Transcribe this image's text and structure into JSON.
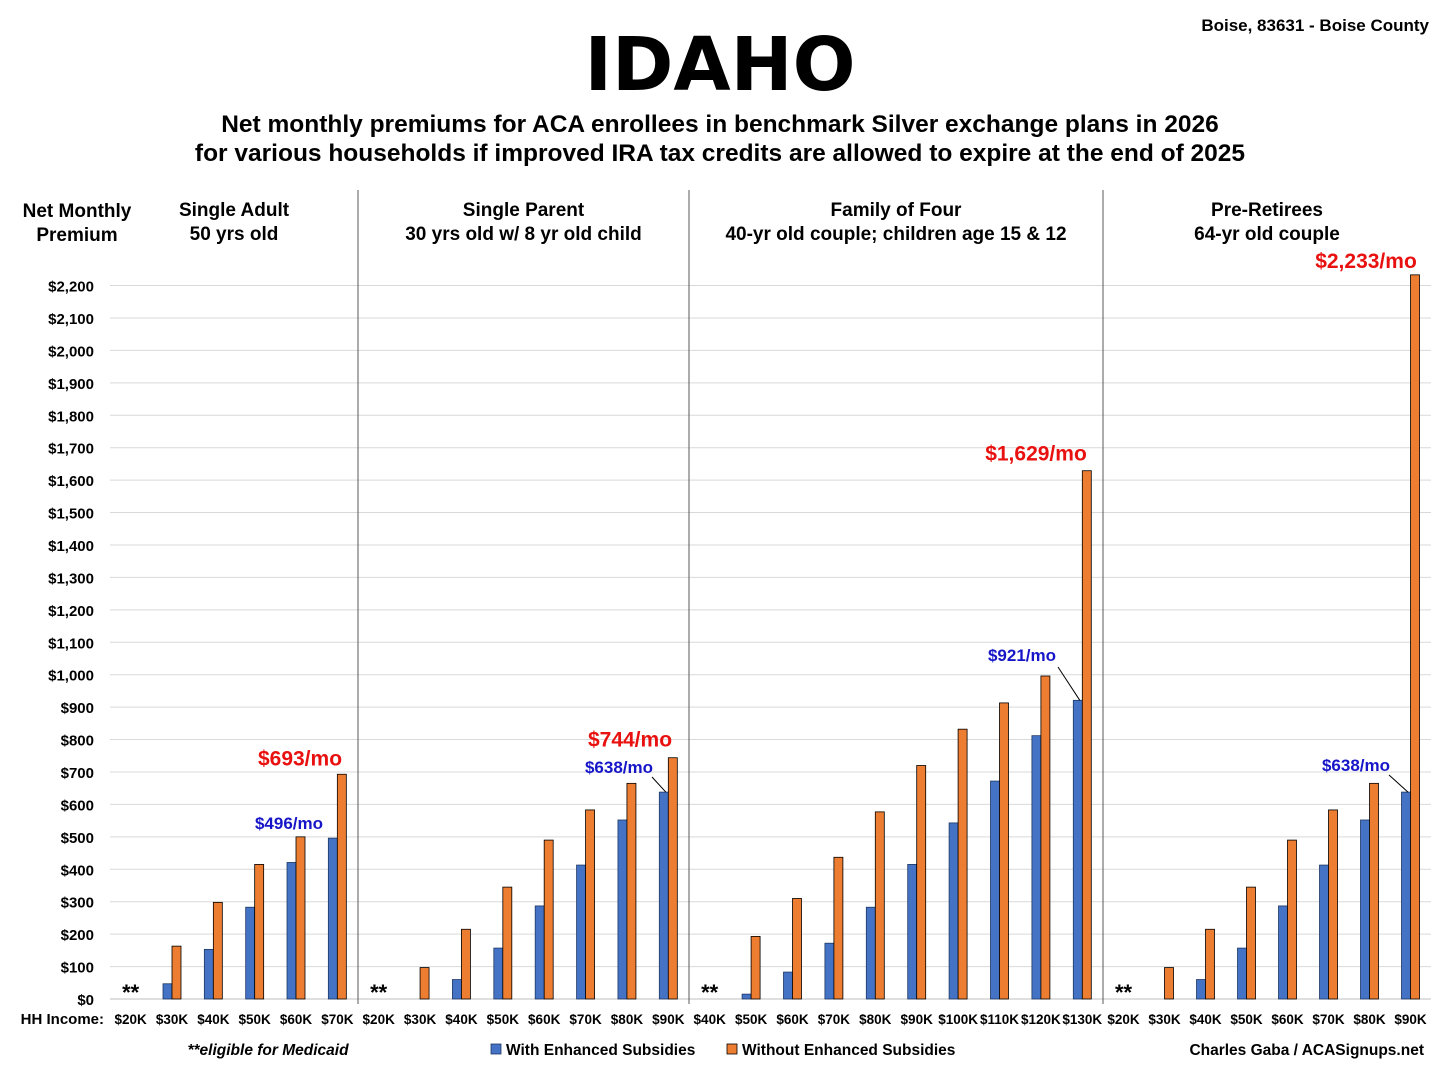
{
  "chart_data": {
    "type": "bar",
    "title": "IDAHO",
    "subtitle": [
      "Net monthly premiums for ACA enrollees in benchmark Silver exchange plans in 2026",
      "for various households if improved IRA tax credits are allowed to expire at the end of 2025"
    ],
    "location": "Boise, 83631 - Boise County",
    "ylabel": [
      "Net Monthly",
      "Premium"
    ],
    "xlabel": "HH Income:",
    "ylim": [
      0,
      2200
    ],
    "ytick_step": 100,
    "grid": true,
    "legend_position": "bottom-center",
    "series_names": [
      "With Enhanced Subsidies",
      "Without Enhanced Subsidies"
    ],
    "colors": {
      "with": "#4472C4",
      "without": "#ED7D31",
      "callout_with": "#1616C8",
      "callout_without": "#E8110F"
    },
    "groups": [
      {
        "title": [
          "Single Adult",
          "50 yrs old"
        ],
        "categories": [
          "$20K",
          "$30K",
          "$40K",
          "$50K",
          "$60K",
          "$70K"
        ],
        "with": [
          0,
          47,
          153,
          283,
          421,
          496
        ],
        "without": [
          0,
          163,
          298,
          415,
          500,
          693
        ],
        "medicaid_mark": "**",
        "callouts": {
          "without": "$693/mo",
          "with": "$496/mo"
        }
      },
      {
        "title": [
          "Single Parent",
          "30 yrs old w/ 8 yr old child"
        ],
        "categories": [
          "$20K",
          "$30K",
          "$40K",
          "$50K",
          "$60K",
          "$70K",
          "$80K",
          "$90K"
        ],
        "with": [
          0,
          0,
          60,
          157,
          287,
          413,
          552,
          638
        ],
        "without": [
          0,
          97,
          215,
          345,
          490,
          583,
          665,
          744
        ],
        "medicaid_mark": "**",
        "callouts": {
          "without": "$744/mo",
          "with": "$638/mo"
        }
      },
      {
        "title": [
          "Family of Four",
          "40-yr old couple; children age 15 & 12"
        ],
        "categories": [
          "$40K",
          "$50K",
          "$60K",
          "$70K",
          "$80K",
          "$90K",
          "$100K",
          "$110K",
          "$120K",
          "$130K"
        ],
        "with": [
          0,
          15,
          83,
          172,
          283,
          415,
          543,
          672,
          812,
          921
        ],
        "without": [
          0,
          193,
          310,
          437,
          577,
          720,
          832,
          913,
          996,
          1629
        ],
        "medicaid_mark": "**",
        "callouts": {
          "without": "$1,629/mo",
          "with": "$921/mo"
        }
      },
      {
        "title": [
          "Pre-Retirees",
          "64-yr old couple"
        ],
        "categories": [
          "$20K",
          "$30K",
          "$40K",
          "$50K",
          "$60K",
          "$70K",
          "$80K",
          "$90K"
        ],
        "with": [
          0,
          0,
          60,
          157,
          287,
          413,
          552,
          638
        ],
        "without": [
          0,
          97,
          215,
          345,
          490,
          583,
          665,
          2233
        ],
        "medicaid_mark": "**",
        "callouts": {
          "without": "$2,233/mo",
          "with": "$638/mo"
        }
      }
    ],
    "footnote": "**eligible for Medicaid",
    "credit": "Charles Gaba / ACASignups.net"
  }
}
